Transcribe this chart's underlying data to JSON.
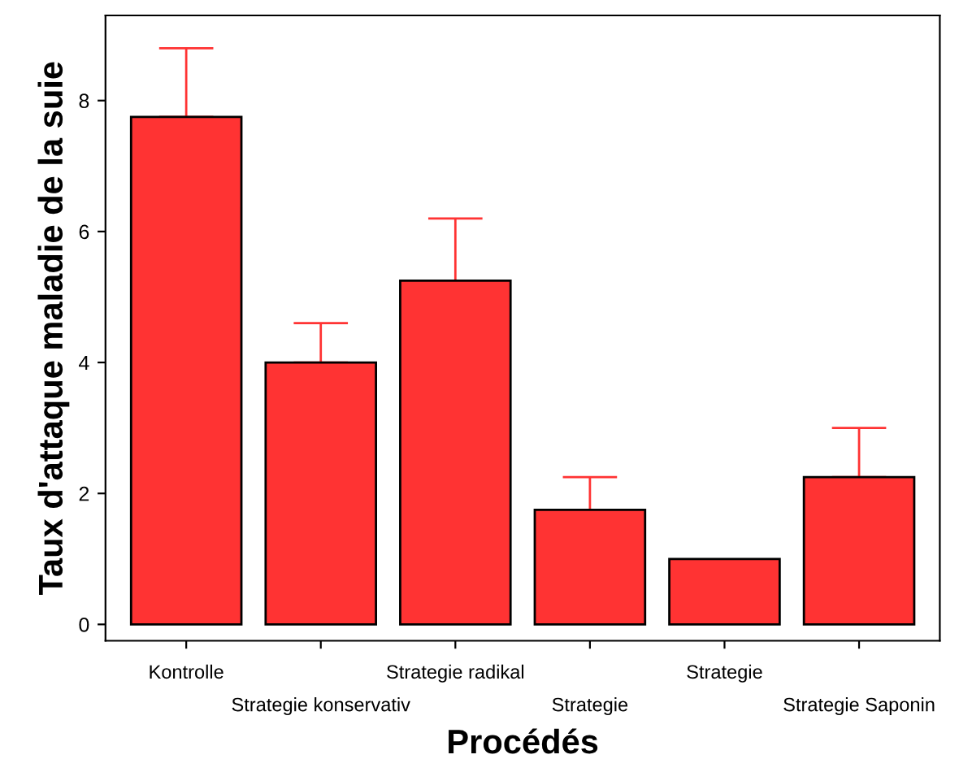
{
  "chart_data": {
    "type": "bar",
    "xlabel": "Procédés",
    "ylabel": "Taux d'attaque maladie de la suie",
    "categories": [
      "Kontrolle",
      "Strategie konservativ",
      "Strategie radikal",
      "Strategie",
      "Strategie",
      "Strategie Saponin"
    ],
    "values": [
      7.75,
      4.0,
      5.25,
      1.75,
      1.0,
      2.25
    ],
    "errors": [
      [
        7.75,
        8.8
      ],
      [
        4.0,
        4.6
      ],
      [
        5.25,
        6.2
      ],
      [
        1.75,
        2.25
      ],
      null,
      [
        2.25,
        3.0
      ]
    ],
    "color": "#ff3333",
    "ylim": [
      -0.25,
      9.3
    ],
    "yticks": [
      0,
      2,
      4,
      6,
      8
    ],
    "grid": false,
    "legend": false
  }
}
